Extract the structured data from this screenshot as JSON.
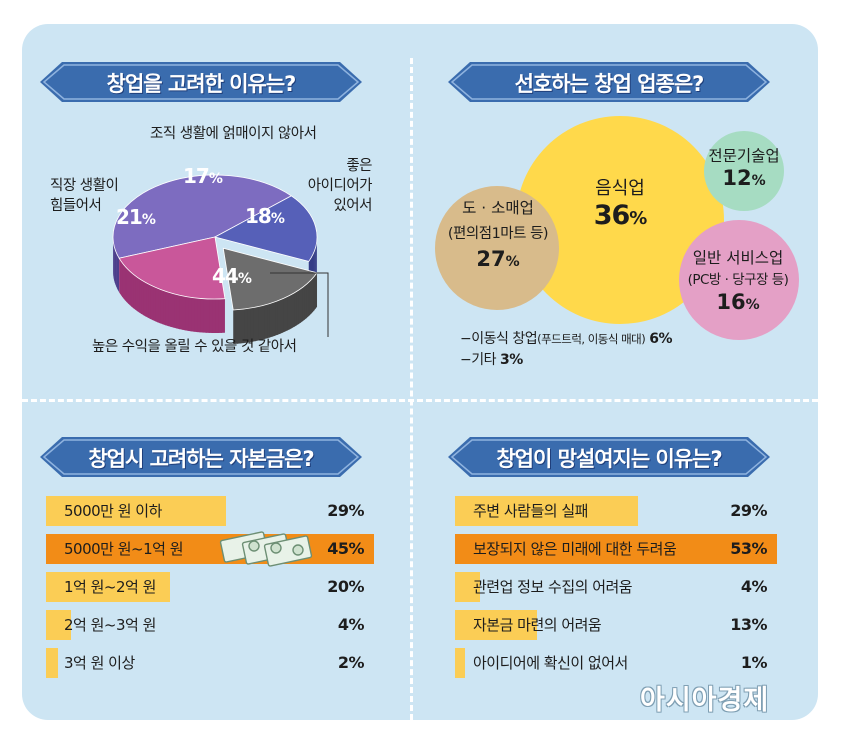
{
  "colors": {
    "background": "#cde5f3",
    "banner": "#3a6cae",
    "bar_normal": "#fbcd55",
    "bar_highlight": "#f28c17",
    "pie_purple": "#7d6cc0",
    "pie_blue": "#5660b8",
    "pie_gray": "#6d6d6d",
    "pie_pink": "#c9579a",
    "circle_yellow": "#ffd94b",
    "circle_tan": "#d8bb8b",
    "circle_green": "#a6dcc2",
    "circle_pink": "#e4a0c6"
  },
  "chart_data": [
    {
      "type": "pie",
      "title": "창업을 고려한 이유는?",
      "slices": [
        {
          "label": "높은 수익을 올릴 수 있을 것 같아서",
          "value": 44,
          "value_text": "44",
          "unit": "%"
        },
        {
          "label_lines": [
            "좋은",
            "아이디어가",
            "있어서"
          ],
          "value": 18,
          "value_text": "18",
          "unit": "%"
        },
        {
          "label": "조직 생활에 얽매이지 않아서",
          "value": 17,
          "value_text": "17",
          "unit": "%"
        },
        {
          "label_lines": [
            "직장 생활이",
            "힘들어서"
          ],
          "value": 21,
          "value_text": "21",
          "unit": "%"
        }
      ]
    },
    {
      "type": "bubble",
      "title": "선호하는 창업 업종은?",
      "bubbles": [
        {
          "label": "음식업",
          "value": 36,
          "value_text": "36",
          "unit": "%"
        },
        {
          "label": "도 · 소매업",
          "sub": "(편의점1마트 등)",
          "value": 27,
          "value_text": "27",
          "unit": "%"
        },
        {
          "label": "전문기술업",
          "value": 12,
          "value_text": "12",
          "unit": "%"
        },
        {
          "label": "일반 서비스업",
          "sub": "(PC방 · 당구장 등)",
          "value": 16,
          "value_text": "16",
          "unit": "%"
        }
      ],
      "notes": [
        {
          "prefix": "−이동식 창업",
          "detail": "(푸드트럭, 이동식 매대)",
          "value_text": "6%"
        },
        {
          "prefix": "−기타",
          "detail": "",
          "value_text": "3%"
        }
      ]
    },
    {
      "type": "bar",
      "orientation": "horizontal",
      "title": "창업시 고려하는 자본금은?",
      "categories": [
        "5000만 원 이하",
        "5000만 원~1억 원",
        "1억 원~2억 원",
        "2억 원~3억 원",
        "3억 원 이상"
      ],
      "values": [
        29,
        45,
        20,
        4,
        2
      ],
      "value_labels": [
        "29%",
        "45%",
        "20%",
        "4%",
        "2%"
      ],
      "highlight_index": 1,
      "xlim": [
        0,
        45
      ]
    },
    {
      "type": "bar",
      "orientation": "horizontal",
      "title": "창업이 망설여지는 이유는?",
      "categories": [
        "주변 사람들의 실패",
        "보장되지 않은 미래에 대한 두려움",
        "관련업 정보 수집의 어려움",
        "자본금 마련의 어려움",
        "아이디어에 확신이 없어서"
      ],
      "values": [
        29,
        53,
        4,
        13,
        1
      ],
      "value_labels": [
        "29%",
        "53%",
        "4%",
        "13%",
        "1%"
      ],
      "highlight_index": 1,
      "xlim": [
        0,
        53
      ]
    }
  ],
  "brand": {
    "name": "아시아경제"
  }
}
